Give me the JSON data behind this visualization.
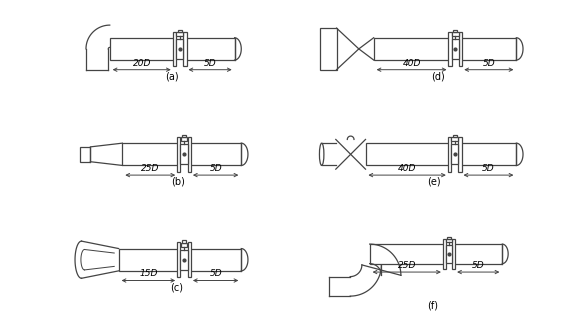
{
  "background_color": "#ffffff",
  "line_color": "#444444",
  "line_width": 0.9,
  "labels": {
    "a": "(a)",
    "b": "(b)",
    "c": "(c)",
    "d": "(d)",
    "e": "(e)",
    "f": "(f)"
  },
  "dims": {
    "a": {
      "upstream": "20D",
      "downstream": "5D"
    },
    "b": {
      "upstream": "25D",
      "downstream": "5D"
    },
    "c": {
      "upstream": "15D",
      "downstream": "5D"
    },
    "d": {
      "upstream": "40D",
      "downstream": "5D"
    },
    "e": {
      "upstream": "40D",
      "downstream": "5D"
    },
    "f": {
      "upstream": "25D",
      "downstream": "5D"
    }
  }
}
